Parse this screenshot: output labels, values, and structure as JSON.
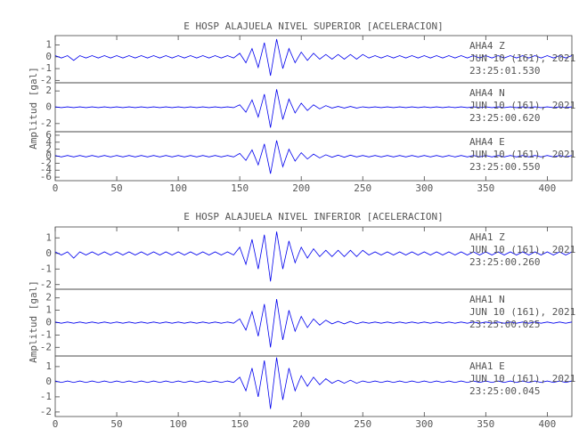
{
  "chart_data": [
    {
      "type": "line",
      "title": "E HOSP ALAJUELA NIVEL SUPERIOR [ACELERACION]",
      "y_label": "Amplitud [gal]",
      "xlim": [
        0,
        420
      ],
      "xticks": [
        0,
        50,
        100,
        150,
        200,
        250,
        300,
        350,
        400
      ],
      "x": [
        0,
        5,
        10,
        15,
        20,
        25,
        30,
        35,
        40,
        45,
        50,
        55,
        60,
        65,
        70,
        75,
        80,
        85,
        90,
        95,
        100,
        105,
        110,
        115,
        120,
        125,
        130,
        135,
        140,
        145,
        150,
        155,
        160,
        165,
        170,
        175,
        180,
        185,
        190,
        195,
        200,
        205,
        210,
        215,
        220,
        225,
        230,
        235,
        240,
        245,
        250,
        255,
        260,
        265,
        270,
        275,
        280,
        285,
        290,
        295,
        300,
        305,
        310,
        315,
        320,
        325,
        330,
        335,
        340,
        345,
        350,
        355,
        360,
        365,
        370,
        375,
        380,
        385,
        390,
        395,
        400,
        405,
        410,
        415,
        420
      ],
      "panels": [
        {
          "station": "AHA4   Z",
          "date": "JUN 10 (161), 2021",
          "time": "23:25:01.530",
          "color": "#0000ee",
          "ylim": [
            -2.2,
            1.8
          ],
          "yticks": [
            -2,
            -1,
            0,
            1
          ],
          "values": [
            0.1,
            -0.1,
            0.1,
            -0.3,
            0.1,
            -0.1,
            0.1,
            -0.1,
            0.1,
            -0.1,
            0.1,
            -0.1,
            0.1,
            -0.1,
            0.1,
            -0.1,
            0.1,
            -0.1,
            0.1,
            -0.1,
            0.1,
            -0.1,
            0.1,
            -0.1,
            0.1,
            -0.1,
            0.1,
            -0.1,
            0.1,
            -0.1,
            0.3,
            -0.5,
            0.7,
            -0.9,
            1.2,
            -1.6,
            1.5,
            -1.0,
            0.7,
            -0.5,
            0.4,
            -0.3,
            0.3,
            -0.2,
            0.2,
            -0.2,
            0.2,
            -0.2,
            0.2,
            -0.2,
            0.2,
            -0.1,
            0.1,
            -0.1,
            0.1,
            -0.1,
            0.1,
            -0.1,
            0.1,
            -0.1,
            0.1,
            -0.1,
            0.1,
            -0.1,
            0.1,
            -0.1,
            0.1,
            -0.1,
            0.1,
            -0.1,
            0.1,
            -0.1,
            0.1,
            -0.1,
            0.1,
            -0.1,
            0.1,
            -0.1,
            0.1,
            -0.1,
            0.1,
            -0.1,
            0.1,
            -0.1,
            0.1
          ]
        },
        {
          "station": "AHA4   N",
          "date": "JUN 10 (161), 2021",
          "time": "23:25:00.620",
          "color": "#0000ee",
          "ylim": [
            -3,
            3
          ],
          "yticks": [
            -2,
            0,
            2
          ],
          "values": [
            0.05,
            -0.05,
            0.05,
            -0.05,
            0.05,
            -0.05,
            0.05,
            -0.05,
            0.05,
            -0.05,
            0.05,
            -0.05,
            0.05,
            -0.05,
            0.05,
            -0.05,
            0.05,
            -0.05,
            0.05,
            -0.05,
            0.05,
            -0.05,
            0.05,
            -0.05,
            0.05,
            -0.05,
            0.05,
            -0.05,
            0.05,
            -0.05,
            0.3,
            -0.6,
            0.9,
            -1.2,
            1.6,
            -2.5,
            2.2,
            -1.5,
            1.0,
            -0.7,
            0.5,
            -0.4,
            0.3,
            -0.2,
            0.2,
            -0.1,
            0.1,
            -0.1,
            0.1,
            -0.1,
            0.05,
            -0.05,
            0.05,
            -0.05,
            0.05,
            -0.05,
            0.05,
            -0.05,
            0.05,
            -0.05,
            0.05,
            -0.05,
            0.05,
            -0.05,
            0.05,
            -0.05,
            0.05,
            -0.05,
            0.05,
            -0.05,
            0.05,
            -0.05,
            0.05,
            -0.05,
            0.05,
            -0.05,
            0.05,
            -0.05,
            0.05,
            -0.05,
            0.05,
            -0.05,
            0.05,
            -0.05,
            0.05
          ]
        },
        {
          "station": "AHA4   E",
          "date": "JUN 10 (161), 2021",
          "time": "23:25:00.550",
          "color": "#0000ee",
          "ylim": [
            -7,
            7
          ],
          "yticks": [
            -6,
            -4,
            -2,
            0,
            2,
            4,
            6
          ],
          "values": [
            0.2,
            -0.2,
            0.2,
            -0.2,
            0.2,
            -0.2,
            0.2,
            -0.2,
            0.2,
            -0.2,
            0.2,
            -0.2,
            0.2,
            -0.2,
            0.2,
            -0.2,
            0.2,
            -0.2,
            0.2,
            -0.2,
            0.2,
            -0.2,
            0.2,
            -0.2,
            0.2,
            -0.2,
            0.2,
            -0.2,
            0.2,
            -0.2,
            0.8,
            -1.2,
            1.8,
            -2.5,
            3.5,
            -5.0,
            4.5,
            -3.0,
            2.0,
            -1.4,
            1.0,
            -0.8,
            0.6,
            -0.5,
            0.4,
            -0.3,
            0.3,
            -0.3,
            0.3,
            -0.2,
            0.2,
            -0.2,
            0.2,
            -0.2,
            0.2,
            -0.2,
            0.2,
            -0.2,
            0.2,
            -0.2,
            0.2,
            -0.2,
            0.2,
            -0.2,
            0.2,
            -0.2,
            0.2,
            -0.2,
            0.2,
            -0.2,
            0.2,
            -0.2,
            0.2,
            -0.2,
            0.2,
            -0.2,
            0.2,
            -0.2,
            0.2,
            -0.2,
            0.2,
            -0.2,
            0.2,
            -0.2,
            0.2
          ]
        }
      ]
    },
    {
      "type": "line",
      "title": "E HOSP ALAJUELA NIVEL INFERIOR [ACELERACION]",
      "y_label": "Amplitud [gal]",
      "xlim": [
        0,
        420
      ],
      "xticks": [
        0,
        50,
        100,
        150,
        200,
        250,
        300,
        350,
        400
      ],
      "x": [
        0,
        5,
        10,
        15,
        20,
        25,
        30,
        35,
        40,
        45,
        50,
        55,
        60,
        65,
        70,
        75,
        80,
        85,
        90,
        95,
        100,
        105,
        110,
        115,
        120,
        125,
        130,
        135,
        140,
        145,
        150,
        155,
        160,
        165,
        170,
        175,
        180,
        185,
        190,
        195,
        200,
        205,
        210,
        215,
        220,
        225,
        230,
        235,
        240,
        245,
        250,
        255,
        260,
        265,
        270,
        275,
        280,
        285,
        290,
        295,
        300,
        305,
        310,
        315,
        320,
        325,
        330,
        335,
        340,
        345,
        350,
        355,
        360,
        365,
        370,
        375,
        380,
        385,
        390,
        395,
        400,
        405,
        410,
        415,
        420
      ],
      "panels": [
        {
          "station": "AHA1   Z",
          "date": "JUN 10 (161), 2021",
          "time": "23:25:00.260",
          "color": "#0000ee",
          "ylim": [
            -2.3,
            1.7
          ],
          "yticks": [
            -2,
            -1,
            0,
            1
          ],
          "values": [
            0.1,
            -0.1,
            0.1,
            -0.3,
            0.1,
            -0.1,
            0.1,
            -0.1,
            0.1,
            -0.1,
            0.1,
            -0.1,
            0.1,
            -0.1,
            0.1,
            -0.1,
            0.1,
            -0.1,
            0.1,
            -0.1,
            0.1,
            -0.1,
            0.1,
            -0.1,
            0.1,
            -0.1,
            0.1,
            -0.1,
            0.1,
            -0.1,
            0.4,
            -0.7,
            0.9,
            -1.0,
            1.2,
            -1.8,
            1.4,
            -1.0,
            0.8,
            -0.6,
            0.4,
            -0.3,
            0.3,
            -0.2,
            0.2,
            -0.2,
            0.2,
            -0.2,
            0.2,
            -0.2,
            0.2,
            -0.1,
            0.1,
            -0.1,
            0.1,
            -0.1,
            0.1,
            -0.1,
            0.1,
            -0.1,
            0.1,
            -0.1,
            0.1,
            -0.1,
            0.1,
            -0.1,
            0.1,
            -0.1,
            0.1,
            -0.1,
            0.1,
            -0.1,
            0.1,
            -0.1,
            0.1,
            -0.1,
            0.1,
            -0.1,
            0.1,
            -0.1,
            0.1,
            -0.1,
            0.1,
            -0.1,
            0.1
          ]
        },
        {
          "station": "AHA1   N",
          "date": "JUN 10 (161), 2021",
          "time": "23:25:00.025",
          "color": "#0000ee",
          "ylim": [
            -2.7,
            2.7
          ],
          "yticks": [
            -2,
            -1,
            0,
            1,
            2
          ],
          "values": [
            0.05,
            -0.05,
            0.05,
            -0.05,
            0.05,
            -0.05,
            0.05,
            -0.05,
            0.05,
            -0.05,
            0.05,
            -0.05,
            0.05,
            -0.05,
            0.05,
            -0.05,
            0.05,
            -0.05,
            0.05,
            -0.05,
            0.05,
            -0.05,
            0.05,
            -0.05,
            0.05,
            -0.05,
            0.05,
            -0.05,
            0.05,
            -0.05,
            0.3,
            -0.6,
            0.9,
            -1.1,
            1.5,
            -2.0,
            1.9,
            -1.4,
            1.0,
            -0.7,
            0.5,
            -0.4,
            0.3,
            -0.2,
            0.2,
            -0.1,
            0.1,
            -0.1,
            0.1,
            -0.1,
            0.05,
            -0.05,
            0.05,
            -0.05,
            0.05,
            -0.05,
            0.05,
            -0.05,
            0.05,
            -0.05,
            0.05,
            -0.05,
            0.05,
            -0.05,
            0.05,
            -0.05,
            0.05,
            -0.05,
            0.05,
            -0.05,
            0.05,
            -0.05,
            0.05,
            -0.05,
            0.05,
            -0.05,
            0.05,
            -0.05,
            0.05,
            -0.05,
            0.05,
            -0.05,
            0.05,
            -0.05,
            0.05
          ]
        },
        {
          "station": "AHA1   E",
          "date": "JUN 10 (161), 2021",
          "time": "23:25:00.045",
          "color": "#0000ee",
          "ylim": [
            -2.3,
            1.7
          ],
          "yticks": [
            -2,
            -1,
            0,
            1
          ],
          "values": [
            0.05,
            -0.05,
            0.05,
            -0.05,
            0.05,
            -0.05,
            0.05,
            -0.05,
            0.05,
            -0.05,
            0.05,
            -0.05,
            0.05,
            -0.05,
            0.05,
            -0.05,
            0.05,
            -0.05,
            0.05,
            -0.05,
            0.05,
            -0.05,
            0.05,
            -0.05,
            0.05,
            -0.05,
            0.05,
            -0.05,
            0.05,
            -0.05,
            0.3,
            -0.6,
            0.9,
            -1.0,
            1.4,
            -1.8,
            1.6,
            -1.2,
            0.9,
            -0.6,
            0.4,
            -0.3,
            0.3,
            -0.2,
            0.2,
            -0.1,
            0.1,
            -0.1,
            0.1,
            -0.1,
            0.05,
            -0.05,
            0.05,
            -0.05,
            0.05,
            -0.05,
            0.05,
            -0.05,
            0.05,
            -0.05,
            0.05,
            -0.05,
            0.05,
            -0.05,
            0.05,
            -0.05,
            0.05,
            -0.05,
            0.05,
            -0.05,
            0.05,
            -0.05,
            0.05,
            -0.05,
            0.05,
            -0.05,
            0.05,
            -0.05,
            0.05,
            -0.05,
            0.05,
            -0.05,
            0.05,
            -0.05,
            0.05
          ]
        }
      ]
    }
  ]
}
